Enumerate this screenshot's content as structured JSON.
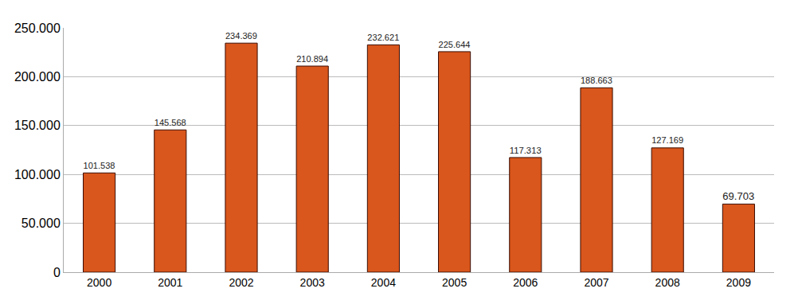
{
  "chart_data": {
    "type": "bar",
    "categories": [
      "2000",
      "2001",
      "2002",
      "2003",
      "2004",
      "2005",
      "2006",
      "2007",
      "2008",
      "2009"
    ],
    "values": [
      101538,
      145568,
      234369,
      210894,
      232621,
      225644,
      117313,
      188663,
      127169,
      69703
    ],
    "value_labels": [
      "101.538",
      "145.568",
      "234.369",
      "210.894",
      "232.621",
      "225.644",
      "117.313",
      "188.663",
      "127.169",
      "69.703"
    ],
    "color": "#d9561c",
    "ylim": [
      0,
      250000
    ],
    "yticks": [
      0,
      {
        "value": 50000,
        "label": "50.000"
      },
      {
        "value": 100000,
        "label": "100.000"
      },
      {
        "value": 150000,
        "label": "150.000"
      },
      {
        "value": 200000,
        "label": "200.000"
      },
      {
        "value": 250000,
        "label": "250.000"
      }
    ],
    "grid": true,
    "data_labels": true
  }
}
